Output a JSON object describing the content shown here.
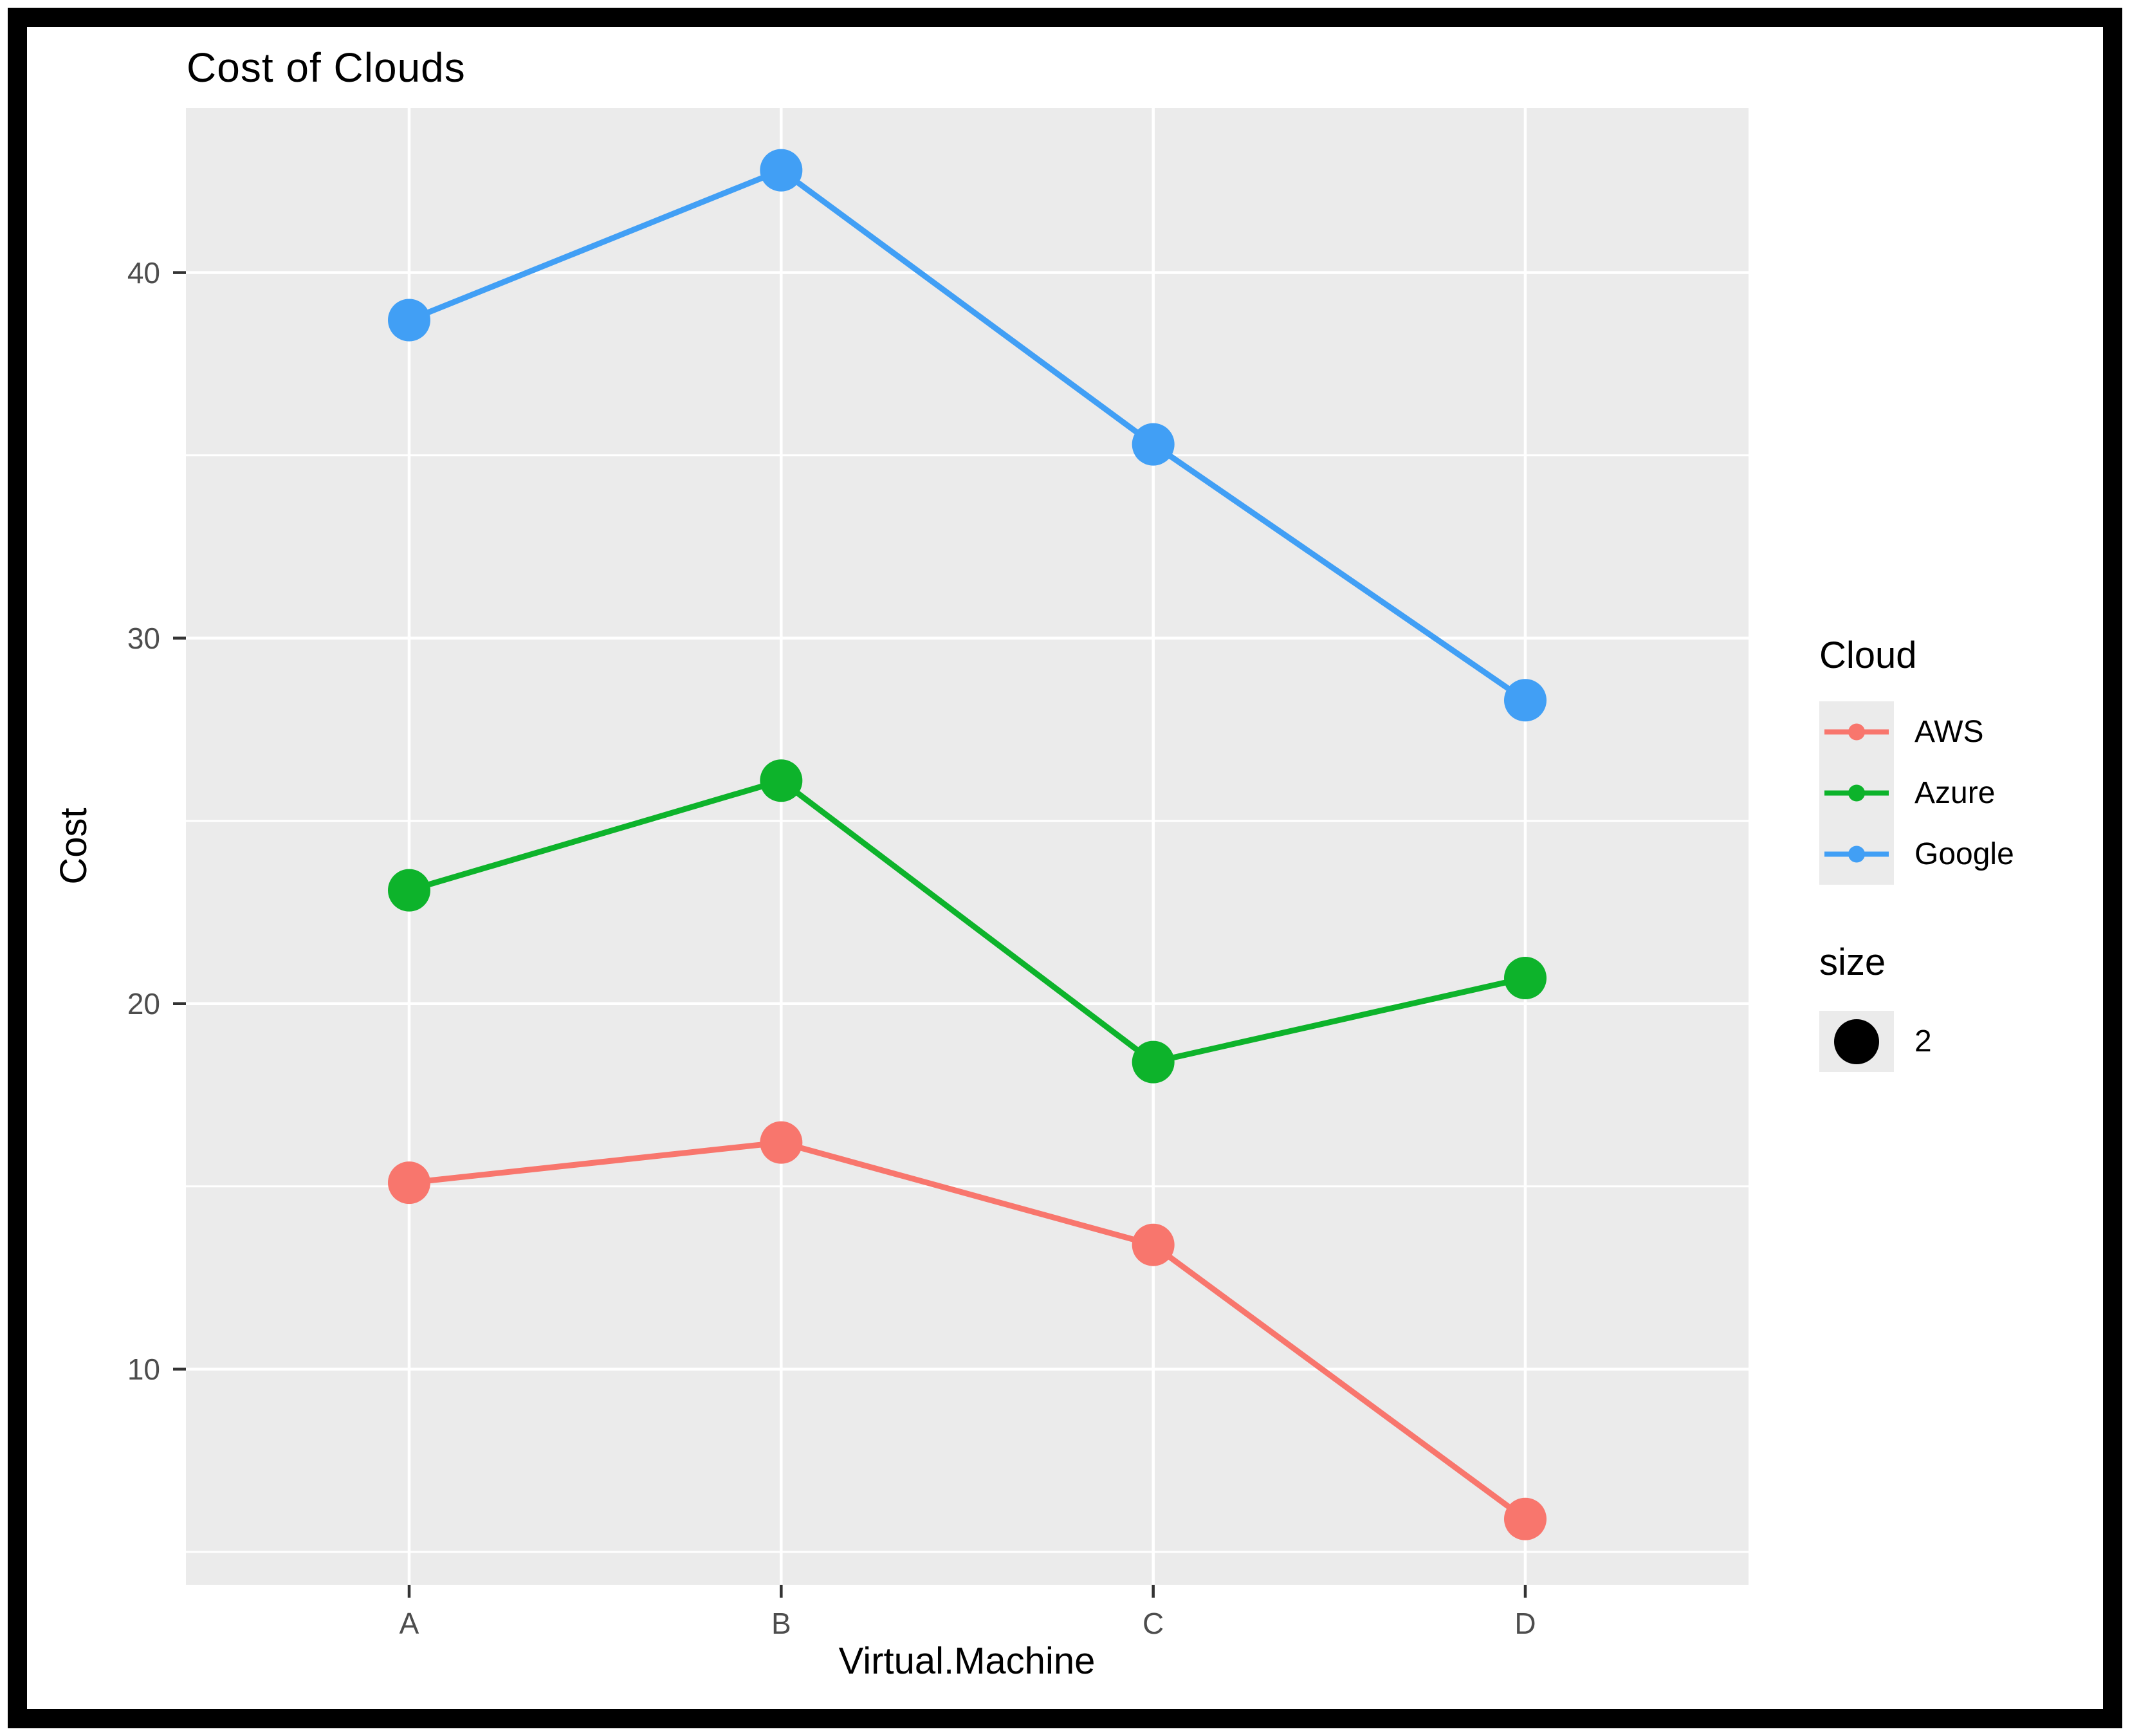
{
  "title": "Cost of Clouds",
  "chart_data": {
    "type": "line",
    "title": "Cost of Clouds",
    "xlabel": "Virtual.Machine",
    "ylabel": "Cost",
    "categories": [
      "A",
      "B",
      "C",
      "D"
    ],
    "series": [
      {
        "name": "AWS",
        "color": "#F8766D",
        "values": [
          15.1,
          16.2,
          13.4,
          5.9
        ]
      },
      {
        "name": "Azure",
        "color": "#0DB32B",
        "values": [
          23.1,
          26.1,
          18.4,
          20.7
        ]
      },
      {
        "name": "Google",
        "color": "#419FF5",
        "values": [
          38.7,
          42.8,
          35.3,
          28.3
        ]
      }
    ],
    "y_ticks": [
      10,
      20,
      30,
      40
    ],
    "y_minor_ticks": [
      5,
      15,
      25,
      35
    ],
    "ylim": [
      4.1,
      44.5
    ],
    "grid": "on",
    "panel_bg": "#EBEBEB",
    "grid_color": "#FFFFFF",
    "tick_color": "#333333",
    "tick_label_color": "#4D4D4D",
    "legend_position": "right"
  },
  "legend": {
    "color_title": "Cloud",
    "entries": [
      "AWS",
      "Azure",
      "Google"
    ],
    "size_title": "size",
    "size_value": "2",
    "size_dot_color": "#000000"
  }
}
